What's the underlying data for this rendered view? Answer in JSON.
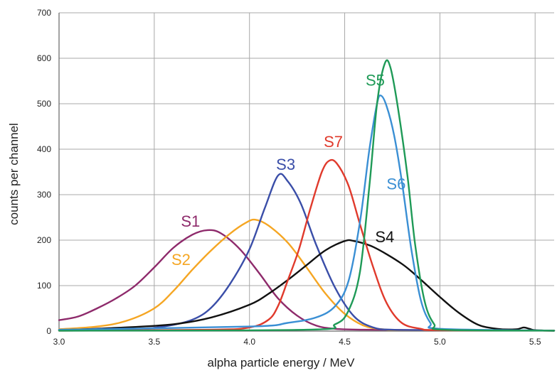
{
  "chart_data": {
    "type": "line",
    "xlabel": "alpha particle energy / MeV",
    "ylabel": "counts per channel",
    "xlim": [
      3.0,
      5.6
    ],
    "ylim": [
      0,
      700
    ],
    "xticks": [
      3.0,
      3.5,
      4.0,
      4.5,
      5.0,
      5.5
    ],
    "xtick_labels": [
      "3.0",
      "3.5",
      "4.0",
      "4.5",
      "5.0",
      "5.5"
    ],
    "yticks": [
      0,
      100,
      200,
      300,
      400,
      500,
      600,
      700
    ],
    "ytick_labels": [
      "0",
      "100",
      "200",
      "300",
      "400",
      "500",
      "600",
      "700"
    ],
    "grid": true,
    "legend": "none (series labeled directly on curves)",
    "series": [
      {
        "name": "S1",
        "color": "#8e2a6b",
        "points": [
          [
            3.0,
            24
          ],
          [
            3.1,
            32
          ],
          [
            3.2,
            50
          ],
          [
            3.3,
            72
          ],
          [
            3.4,
            100
          ],
          [
            3.5,
            140
          ],
          [
            3.6,
            183
          ],
          [
            3.7,
            212
          ],
          [
            3.78,
            222
          ],
          [
            3.85,
            215
          ],
          [
            3.95,
            180
          ],
          [
            4.05,
            128
          ],
          [
            4.15,
            72
          ],
          [
            4.25,
            34
          ],
          [
            4.35,
            12
          ],
          [
            4.45,
            5
          ],
          [
            4.6,
            3
          ],
          [
            5.0,
            2
          ],
          [
            5.6,
            1
          ]
        ]
      },
      {
        "name": "S2",
        "color": "#f5a623",
        "points": [
          [
            3.0,
            4
          ],
          [
            3.2,
            10
          ],
          [
            3.35,
            22
          ],
          [
            3.5,
            50
          ],
          [
            3.6,
            88
          ],
          [
            3.7,
            135
          ],
          [
            3.8,
            178
          ],
          [
            3.9,
            215
          ],
          [
            3.98,
            238
          ],
          [
            4.03,
            245
          ],
          [
            4.1,
            232
          ],
          [
            4.2,
            195
          ],
          [
            4.3,
            140
          ],
          [
            4.4,
            82
          ],
          [
            4.5,
            38
          ],
          [
            4.6,
            12
          ],
          [
            4.7,
            4
          ],
          [
            4.85,
            2
          ],
          [
            5.6,
            1
          ]
        ]
      },
      {
        "name": "S3",
        "color": "#3a4ea8",
        "points": [
          [
            3.0,
            2
          ],
          [
            3.4,
            5
          ],
          [
            3.55,
            10
          ],
          [
            3.7,
            25
          ],
          [
            3.8,
            52
          ],
          [
            3.9,
            105
          ],
          [
            4.0,
            180
          ],
          [
            4.08,
            270
          ],
          [
            4.15,
            342
          ],
          [
            4.2,
            330
          ],
          [
            4.27,
            280
          ],
          [
            4.35,
            190
          ],
          [
            4.45,
            95
          ],
          [
            4.55,
            32
          ],
          [
            4.65,
            8
          ],
          [
            4.75,
            3
          ],
          [
            5.0,
            2
          ],
          [
            5.6,
            1
          ]
        ]
      },
      {
        "name": "S4",
        "color": "#111111",
        "points": [
          [
            3.0,
            2
          ],
          [
            3.3,
            7
          ],
          [
            3.6,
            15
          ],
          [
            3.8,
            30
          ],
          [
            4.0,
            58
          ],
          [
            4.1,
            82
          ],
          [
            4.2,
            112
          ],
          [
            4.3,
            145
          ],
          [
            4.4,
            178
          ],
          [
            4.5,
            198
          ],
          [
            4.55,
            198
          ],
          [
            4.65,
            185
          ],
          [
            4.8,
            148
          ],
          [
            4.9,
            113
          ],
          [
            5.0,
            75
          ],
          [
            5.1,
            40
          ],
          [
            5.2,
            14
          ],
          [
            5.3,
            5
          ],
          [
            5.4,
            4
          ],
          [
            5.44,
            8
          ],
          [
            5.47,
            5
          ],
          [
            5.5,
            2
          ],
          [
            5.6,
            1
          ]
        ]
      },
      {
        "name": "S7",
        "color": "#e03a2c",
        "points": [
          [
            3.0,
            1
          ],
          [
            3.8,
            3
          ],
          [
            4.0,
            8
          ],
          [
            4.1,
            25
          ],
          [
            4.15,
            55
          ],
          [
            4.2,
            110
          ],
          [
            4.26,
            180
          ],
          [
            4.32,
            270
          ],
          [
            4.38,
            350
          ],
          [
            4.42,
            375
          ],
          [
            4.46,
            368
          ],
          [
            4.52,
            320
          ],
          [
            4.58,
            235
          ],
          [
            4.65,
            140
          ],
          [
            4.72,
            62
          ],
          [
            4.8,
            18
          ],
          [
            4.9,
            5
          ],
          [
            5.0,
            2
          ],
          [
            5.6,
            1
          ]
        ]
      },
      {
        "name": "S6",
        "color": "#3a8fd4",
        "points": [
          [
            3.0,
            3
          ],
          [
            4.0,
            10
          ],
          [
            4.2,
            18
          ],
          [
            4.35,
            30
          ],
          [
            4.45,
            55
          ],
          [
            4.52,
            110
          ],
          [
            4.58,
            240
          ],
          [
            4.63,
            400
          ],
          [
            4.67,
            500
          ],
          [
            4.69,
            518
          ],
          [
            4.72,
            495
          ],
          [
            4.76,
            430
          ],
          [
            4.8,
            330
          ],
          [
            4.85,
            180
          ],
          [
            4.9,
            68
          ],
          [
            4.95,
            18
          ],
          [
            5.0,
            5
          ],
          [
            5.6,
            1
          ]
        ]
      },
      {
        "name": "S5",
        "color": "#1f9a57",
        "points": [
          [
            3.0,
            1
          ],
          [
            4.3,
            3
          ],
          [
            4.45,
            15
          ],
          [
            4.52,
            45
          ],
          [
            4.58,
            130
          ],
          [
            4.63,
            320
          ],
          [
            4.67,
            500
          ],
          [
            4.71,
            588
          ],
          [
            4.74,
            580
          ],
          [
            4.78,
            490
          ],
          [
            4.83,
            340
          ],
          [
            4.87,
            190
          ],
          [
            4.92,
            65
          ],
          [
            4.97,
            15
          ],
          [
            5.02,
            3
          ],
          [
            5.6,
            1
          ]
        ]
      }
    ],
    "annotations": [
      {
        "text": "S1",
        "color": "#8e2a6b",
        "x": 3.64,
        "y": 230
      },
      {
        "text": "S2",
        "color": "#f5a623",
        "x": 3.59,
        "y": 145
      },
      {
        "text": "S3",
        "color": "#3a4ea8",
        "x": 4.14,
        "y": 355
      },
      {
        "text": "S7",
        "color": "#e03a2c",
        "x": 4.39,
        "y": 405
      },
      {
        "text": "S5",
        "color": "#1f9a57",
        "x": 4.61,
        "y": 540
      },
      {
        "text": "S6",
        "color": "#3a8fd4",
        "x": 4.72,
        "y": 312
      },
      {
        "text": "S4",
        "color": "#111111",
        "x": 4.66,
        "y": 195
      }
    ]
  }
}
